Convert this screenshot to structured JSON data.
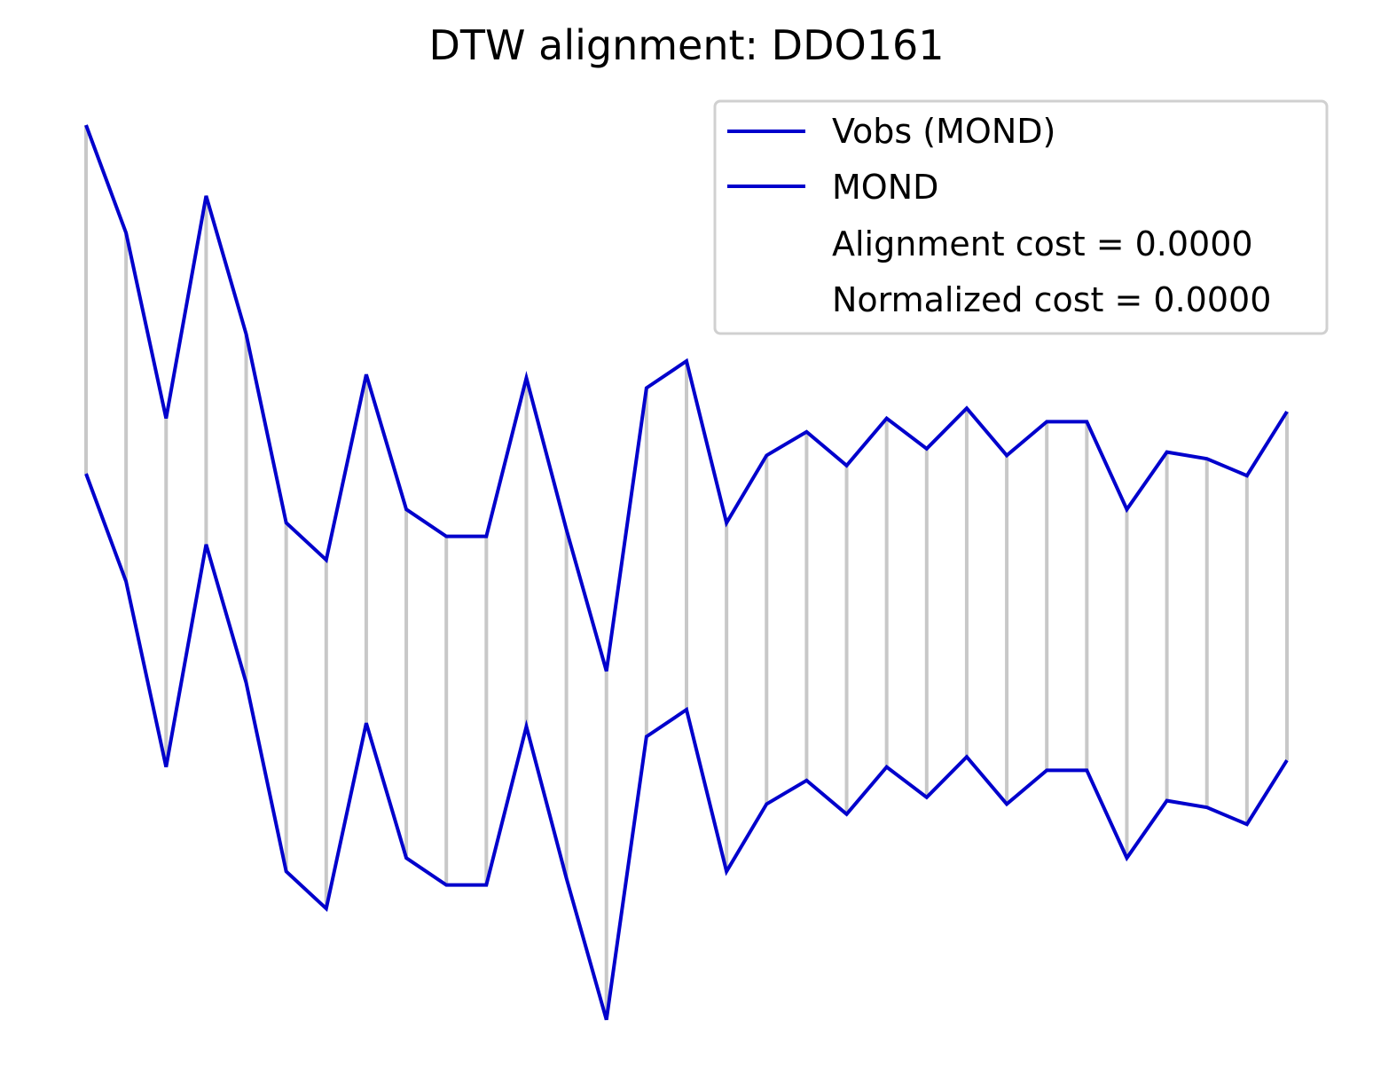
{
  "chart_data": {
    "type": "line",
    "title": "DTW alignment: DDO161",
    "xlabel": "",
    "ylabel": "",
    "axes_visible": false,
    "grid": false,
    "legend_position": "top-right",
    "x": [
      0,
      1,
      2,
      3,
      4,
      5,
      6,
      7,
      8,
      9,
      10,
      11,
      12,
      13,
      14,
      15,
      16,
      17,
      18,
      19,
      20,
      21,
      22,
      23,
      24,
      25,
      26,
      27,
      28,
      29,
      30
    ],
    "series": [
      {
        "name": "Vobs (MOND)",
        "color": "#0000cc",
        "values": [
          1.0,
          0.68,
          0.13,
          0.79,
          0.38,
          -0.18,
          -0.29,
          0.26,
          -0.14,
          -0.22,
          -0.22,
          0.25,
          -0.2,
          -0.62,
          0.22,
          0.3,
          -0.18,
          0.02,
          0.09,
          -0.01,
          0.13,
          0.04,
          0.16,
          0.02,
          0.12,
          0.12,
          -0.14,
          0.03,
          0.01,
          -0.04,
          0.15
        ]
      },
      {
        "name": "MOND",
        "color": "#0000cc",
        "values": [
          1.0,
          0.68,
          0.13,
          0.79,
          0.38,
          -0.18,
          -0.29,
          0.26,
          -0.14,
          -0.22,
          -0.22,
          0.25,
          -0.2,
          -0.62,
          0.22,
          0.3,
          -0.18,
          0.02,
          0.09,
          -0.01,
          0.13,
          0.04,
          0.16,
          0.02,
          0.12,
          0.12,
          -0.14,
          0.03,
          0.01,
          -0.04,
          0.15
        ]
      }
    ],
    "alignment_line_color": "#c8c8c8",
    "legend_extra": [
      "Alignment cost = 0.0000",
      "Normalized cost = 0.0000"
    ]
  }
}
